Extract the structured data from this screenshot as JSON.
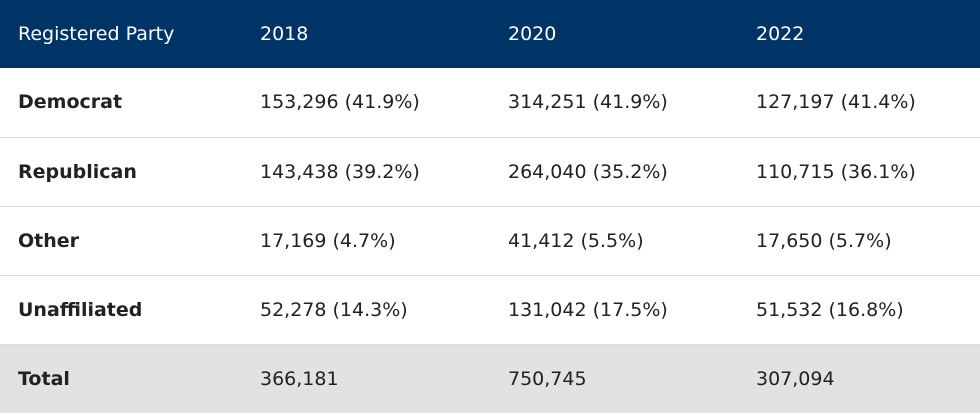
{
  "table": {
    "header": [
      "Registered Party",
      "2018",
      "2020",
      "2022"
    ],
    "rows": [
      [
        "Democrat",
        "153,296 (41.9%)",
        "314,251 (41.9%)",
        "127,197 (41.4%)"
      ],
      [
        "Republican",
        "143,438 (39.2%)",
        "264,040 (35.2%)",
        "110,715 (36.1%)"
      ],
      [
        "Other",
        "17,169 (4.7%)",
        "41,412 (5.5%)",
        "17,650 (5.7%)"
      ],
      [
        "Unaffiliated",
        "52,278 (14.3%)",
        "131,042 (17.5%)",
        "51,532 (16.8%)"
      ],
      [
        "Total",
        "366,181",
        "750,745",
        "307,094"
      ]
    ]
  }
}
